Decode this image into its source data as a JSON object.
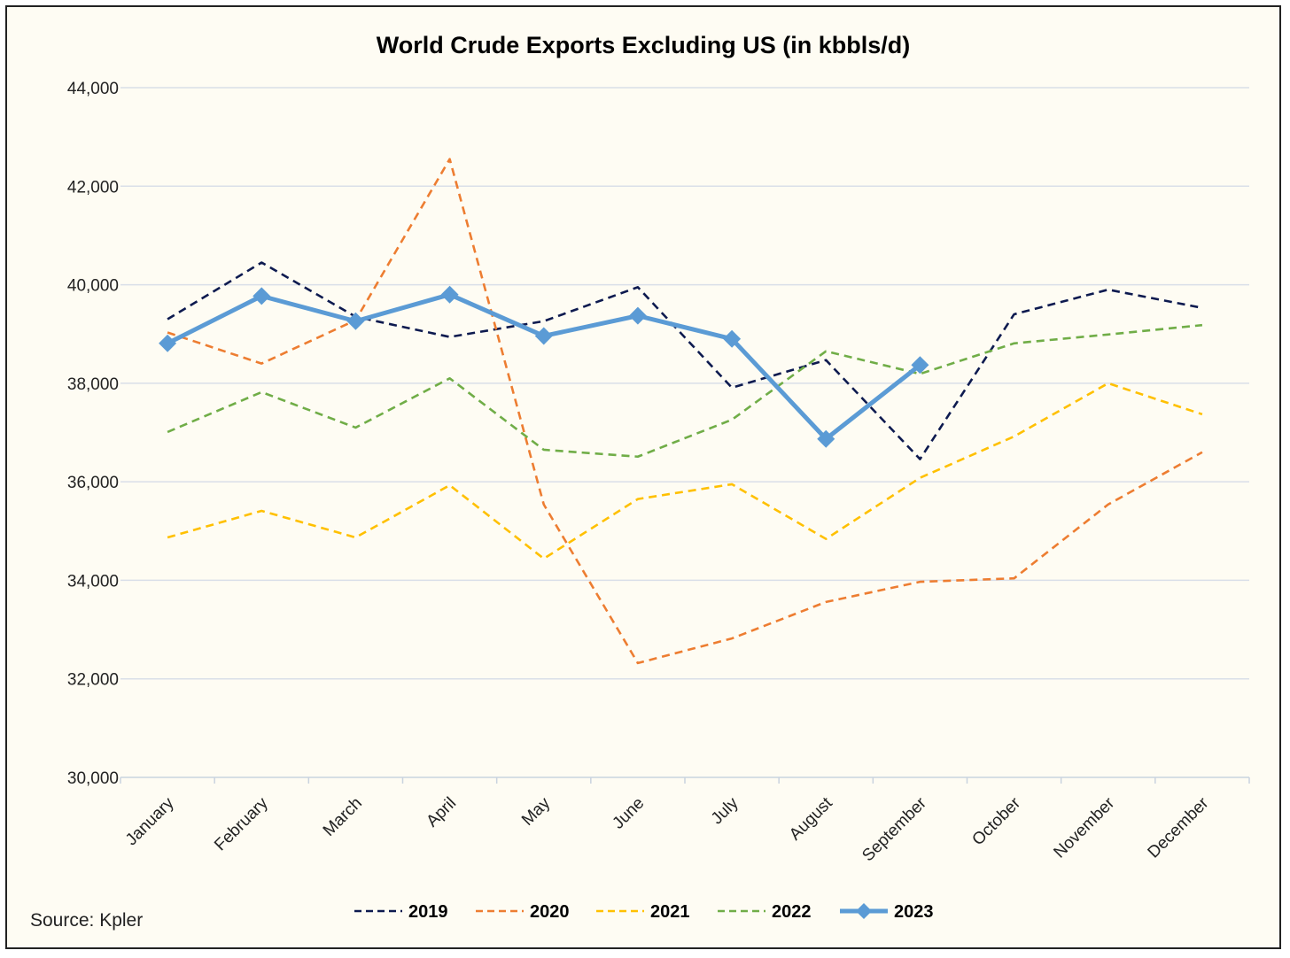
{
  "chart_data": {
    "type": "line",
    "title": "World Crude Exports Excluding US (in kbbls/d)",
    "xlabel": "",
    "ylabel": "",
    "ylim": [
      30000,
      44000
    ],
    "yticks": [
      30000,
      32000,
      34000,
      36000,
      38000,
      40000,
      42000,
      44000
    ],
    "ytick_labels": [
      "30,000",
      "32,000",
      "34,000",
      "36,000",
      "38,000",
      "40,000",
      "42,000",
      "44,000"
    ],
    "grid": true,
    "legend_position": "bottom",
    "categories": [
      "January",
      "February",
      "March",
      "April",
      "May",
      "June",
      "July",
      "August",
      "September",
      "October",
      "November",
      "December"
    ],
    "series": [
      {
        "name": "2019",
        "color": "#0d1a4f",
        "style": "dashed",
        "values": [
          39300,
          40450,
          39350,
          38940,
          39260,
          39950,
          37910,
          38470,
          36460,
          39400,
          39900,
          39530
        ]
      },
      {
        "name": "2020",
        "color": "#ed7d31",
        "style": "dashed",
        "values": [
          39030,
          38400,
          39280,
          42550,
          35540,
          32320,
          32820,
          33560,
          33970,
          34040,
          35540,
          36600
        ]
      },
      {
        "name": "2021",
        "color": "#ffc000",
        "style": "dashed",
        "values": [
          34870,
          35410,
          34870,
          35930,
          34440,
          35650,
          35950,
          34840,
          36080,
          36920,
          38000,
          37370
        ]
      },
      {
        "name": "2022",
        "color": "#70ad47",
        "style": "dashed",
        "values": [
          37010,
          37820,
          37100,
          38100,
          36650,
          36510,
          37260,
          38650,
          38190,
          38810,
          38990,
          39180
        ]
      },
      {
        "name": "2023",
        "color": "#5b9bd5",
        "style": "solid-marker",
        "values": [
          38810,
          39770,
          39260,
          39800,
          38960,
          39370,
          38900,
          36870,
          38370,
          null,
          null,
          null
        ]
      }
    ],
    "source": "Source: Kpler"
  }
}
